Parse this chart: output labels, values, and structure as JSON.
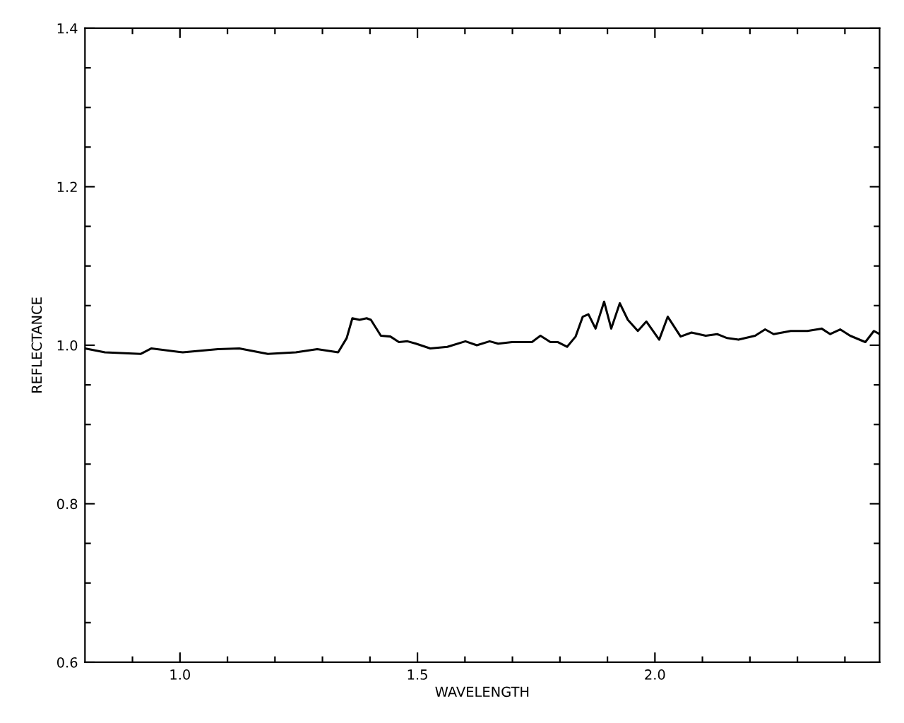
{
  "chart_data": {
    "type": "line",
    "xlabel": "WAVELENGTH",
    "ylabel": "REFLECTANCE",
    "x": [
      0.8,
      0.842,
      0.917,
      0.94,
      1.006,
      1.08,
      1.125,
      1.185,
      1.244,
      1.289,
      1.333,
      1.351,
      1.363,
      1.378,
      1.393,
      1.402,
      1.423,
      1.443,
      1.461,
      1.479,
      1.497,
      1.527,
      1.563,
      1.601,
      1.625,
      1.652,
      1.67,
      1.699,
      1.741,
      1.759,
      1.78,
      1.795,
      1.815,
      1.833,
      1.848,
      1.86,
      1.875,
      1.893,
      1.908,
      1.926,
      1.943,
      1.964,
      1.982,
      2.009,
      2.027,
      2.054,
      2.077,
      2.107,
      2.131,
      2.152,
      2.176,
      2.211,
      2.232,
      2.25,
      2.286,
      2.321,
      2.351,
      2.369,
      2.39,
      2.411,
      2.443,
      2.461,
      2.473
    ],
    "series": [
      {
        "color": "#000000",
        "values": [
          0.996,
          0.991,
          0.989,
          0.996,
          0.991,
          0.995,
          0.996,
          0.989,
          0.991,
          0.995,
          0.991,
          1.009,
          1.034,
          1.032,
          1.034,
          1.032,
          1.012,
          1.011,
          1.004,
          1.005,
          1.002,
          0.996,
          0.998,
          1.005,
          1.0,
          1.005,
          1.002,
          1.004,
          1.004,
          1.012,
          1.004,
          1.004,
          0.998,
          1.011,
          1.036,
          1.039,
          1.021,
          1.055,
          1.021,
          1.053,
          1.032,
          1.018,
          1.03,
          1.007,
          1.036,
          1.011,
          1.016,
          1.012,
          1.014,
          1.009,
          1.007,
          1.012,
          1.02,
          1.014,
          1.018,
          1.018,
          1.021,
          1.014,
          1.02,
          1.012,
          1.004,
          1.018,
          1.014
        ]
      }
    ],
    "xlim": [
      0.8,
      2.473
    ],
    "ylim": [
      0.6,
      1.4
    ],
    "xticks": [
      {
        "value": 0.9,
        "label": null
      },
      {
        "value": 1.0,
        "label": "1.0"
      },
      {
        "value": 1.1,
        "label": null
      },
      {
        "value": 1.2,
        "label": null
      },
      {
        "value": 1.3,
        "label": null
      },
      {
        "value": 1.4,
        "label": null
      },
      1.5,
      {
        "value": 1.6,
        "label": null
      },
      {
        "value": 1.7,
        "label": null
      },
      {
        "value": 1.8,
        "label": null
      },
      {
        "value": 1.9,
        "label": null
      },
      {
        "value": 2.0,
        "label": "2.0"
      },
      {
        "value": 2.1,
        "label": null
      },
      {
        "value": 2.2,
        "label": null
      },
      {
        "value": 2.3,
        "label": null
      },
      {
        "value": 2.4,
        "label": null
      }
    ],
    "yticks": [
      0.6,
      {
        "value": 0.65,
        "label": null
      },
      {
        "value": 0.7,
        "label": null
      },
      {
        "value": 0.75,
        "label": null
      },
      0.8,
      {
        "value": 0.85,
        "label": null
      },
      {
        "value": 0.9,
        "label": null
      },
      {
        "value": 0.95,
        "label": null
      },
      {
        "value": 1.0,
        "label": "1.0"
      },
      {
        "value": 1.05,
        "label": null
      },
      {
        "value": 1.1,
        "label": null
      },
      {
        "value": 1.15,
        "label": null
      },
      1.2,
      {
        "value": 1.25,
        "label": null
      },
      {
        "value": 1.3,
        "label": null
      },
      {
        "value": 1.35,
        "label": null
      },
      1.4
    ],
    "grid": false,
    "marker": "none",
    "line_style": "solid"
  }
}
